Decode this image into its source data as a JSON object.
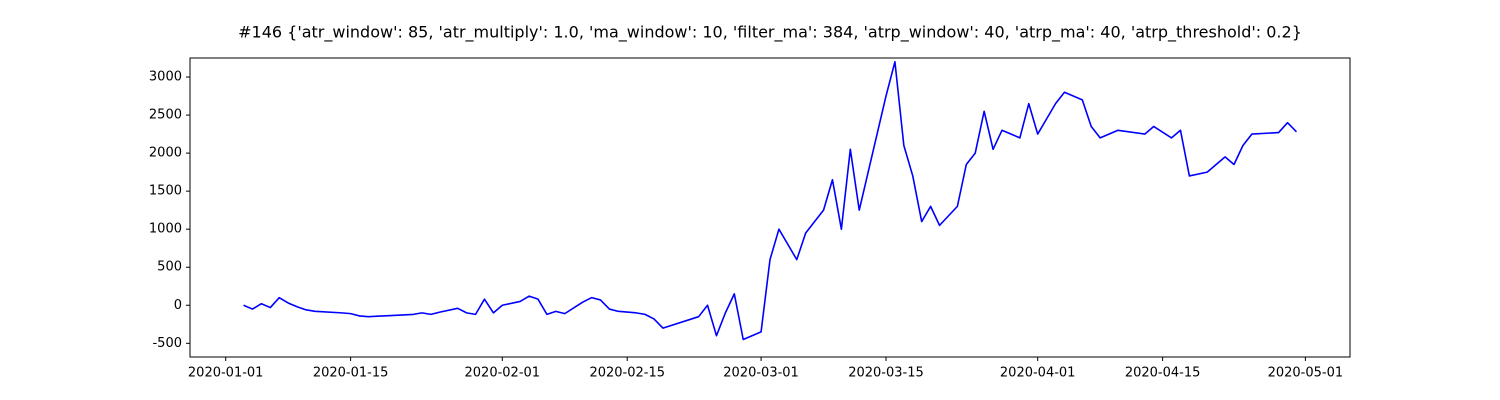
{
  "chart_data": {
    "type": "line",
    "title": "#146 {'atr_window': 85, 'atr_multiply': 1.0, 'ma_window': 10, 'filter_ma': 384, 'atrp_window': 40, 'atrp_ma': 40, 'atrp_threshold': 0.2}",
    "x": [
      "2020-01-03",
      "2020-01-04",
      "2020-01-05",
      "2020-01-06",
      "2020-01-07",
      "2020-01-08",
      "2020-01-09",
      "2020-01-10",
      "2020-01-11",
      "2020-01-14",
      "2020-01-15",
      "2020-01-16",
      "2020-01-17",
      "2020-01-22",
      "2020-01-23",
      "2020-01-24",
      "2020-01-25",
      "2020-01-27",
      "2020-01-28",
      "2020-01-29",
      "2020-01-30",
      "2020-01-31",
      "2020-02-01",
      "2020-02-03",
      "2020-02-04",
      "2020-02-05",
      "2020-02-06",
      "2020-02-07",
      "2020-02-08",
      "2020-02-10",
      "2020-02-11",
      "2020-02-12",
      "2020-02-13",
      "2020-02-14",
      "2020-02-16",
      "2020-02-17",
      "2020-02-18",
      "2020-02-19",
      "2020-02-23",
      "2020-02-24",
      "2020-02-25",
      "2020-02-26",
      "2020-02-27",
      "2020-02-28",
      "2020-03-01",
      "2020-03-02",
      "2020-03-03",
      "2020-03-04",
      "2020-03-05",
      "2020-03-06",
      "2020-03-08",
      "2020-03-09",
      "2020-03-10",
      "2020-03-11",
      "2020-03-12",
      "2020-03-15",
      "2020-03-16",
      "2020-03-17",
      "2020-03-18",
      "2020-03-19",
      "2020-03-20",
      "2020-03-21",
      "2020-03-23",
      "2020-03-24",
      "2020-03-25",
      "2020-03-26",
      "2020-03-27",
      "2020-03-28",
      "2020-03-30",
      "2020-03-31",
      "2020-04-01",
      "2020-04-02",
      "2020-04-03",
      "2020-04-04",
      "2020-04-06",
      "2020-04-07",
      "2020-04-08",
      "2020-04-10",
      "2020-04-13",
      "2020-04-14",
      "2020-04-16",
      "2020-04-17",
      "2020-04-18",
      "2020-04-20",
      "2020-04-22",
      "2020-04-23",
      "2020-04-24",
      "2020-04-25",
      "2020-04-28",
      "2020-04-29",
      "2020-04-30"
    ],
    "series": [
      {
        "color": "blue",
        "values": [
          0,
          -50,
          20,
          -30,
          100,
          30,
          -20,
          -60,
          -80,
          -100,
          -110,
          -140,
          -150,
          -120,
          -100,
          -120,
          -90,
          -40,
          -100,
          -120,
          80,
          -100,
          0,
          50,
          120,
          80,
          -120,
          -80,
          -110,
          40,
          100,
          70,
          -50,
          -80,
          -100,
          -120,
          -180,
          -300,
          -150,
          0,
          -400,
          -100,
          150,
          -450,
          -350,
          600,
          1000,
          800,
          600,
          950,
          1250,
          1650,
          1000,
          2050,
          1250,
          2750,
          3200,
          2100,
          1700,
          1100,
          1300,
          1050,
          1300,
          1850,
          2000,
          2550,
          2050,
          2300,
          2200,
          2650,
          2250,
          2450,
          2650,
          2800,
          2700,
          2350,
          2200,
          2300,
          2250,
          2350,
          2200,
          2300,
          1700,
          1750,
          1950,
          1850,
          2100,
          2250,
          2270,
          2400,
          2280
        ]
      }
    ],
    "xlim": [
      "2019-12-28",
      "2020-05-06"
    ],
    "xticks": [
      "2020-01-01",
      "2020-01-15",
      "2020-02-01",
      "2020-02-15",
      "2020-03-01",
      "2020-03-15",
      "2020-04-01",
      "2020-04-15",
      "2020-05-01"
    ],
    "ylim": [
      -680,
      3250
    ],
    "yticks": [
      -500,
      0,
      500,
      1000,
      1500,
      2000,
      2500,
      3000
    ]
  }
}
